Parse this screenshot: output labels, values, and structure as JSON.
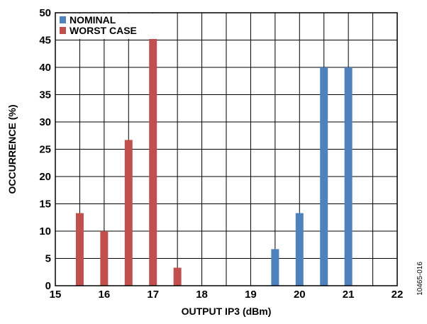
{
  "chart_data": {
    "type": "bar",
    "xlabel": "OUTPUT IP3 (dBm)",
    "ylabel": "OCCURRENCE (%)",
    "xlim": [
      15,
      22
    ],
    "ylim": [
      0,
      50
    ],
    "xticks": [
      15,
      16,
      17,
      18,
      19,
      20,
      21,
      22
    ],
    "yticks": [
      0,
      5,
      10,
      15,
      20,
      25,
      30,
      35,
      40,
      45,
      50
    ],
    "grid": true,
    "legend_position": "top-left",
    "series": [
      {
        "name": "NOMINAL",
        "color": "#4f81bd",
        "x": [
          19.5,
          20.0,
          20.5,
          21.0
        ],
        "values": [
          6.7,
          13.3,
          40.0,
          40.0
        ]
      },
      {
        "name": "WORST CASE",
        "color": "#c0504d",
        "x": [
          15.5,
          16.0,
          16.5,
          17.0,
          17.5
        ],
        "values": [
          13.3,
          10.0,
          26.7,
          46.7,
          3.3
        ]
      }
    ]
  },
  "figure_id": "10465-016"
}
